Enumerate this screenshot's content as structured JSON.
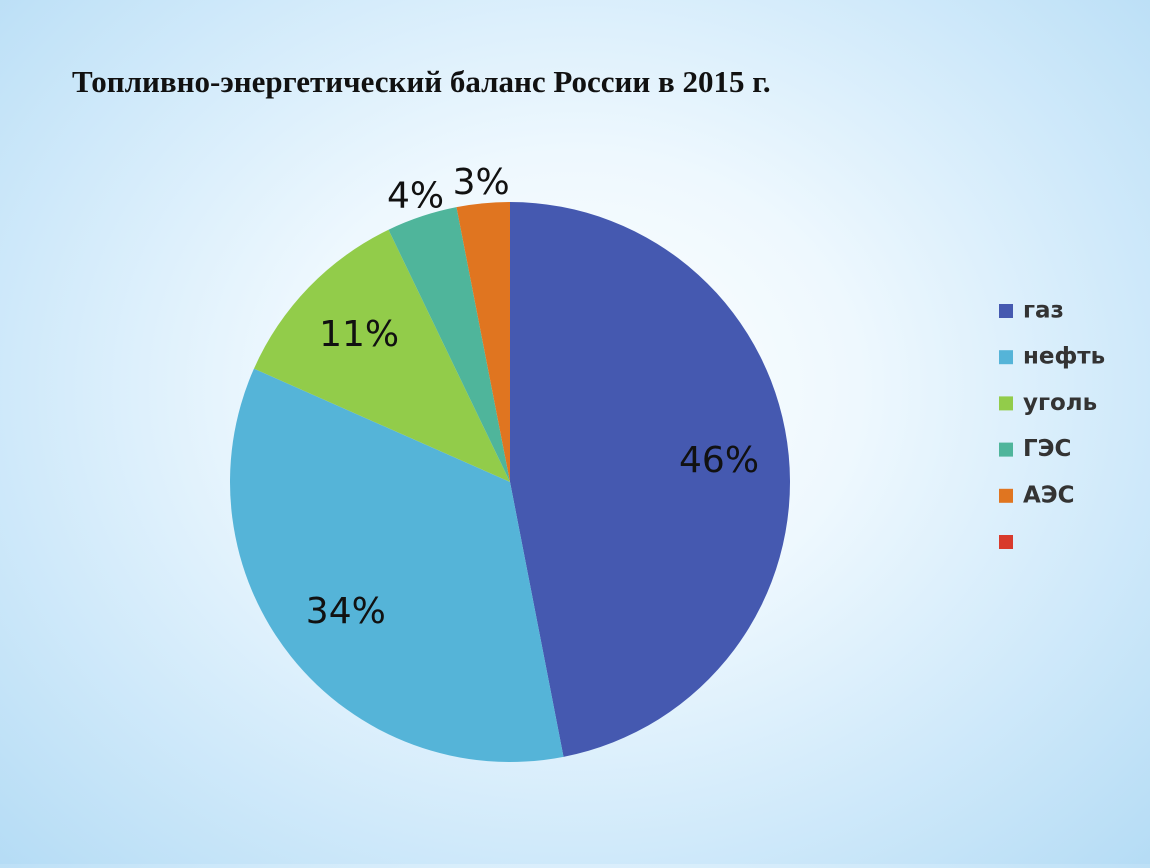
{
  "chart_data": {
    "type": "pie",
    "title": "Топливно-энергетический баланс России в 2015 г.",
    "categories": [
      "газ",
      "нефть",
      "уголь",
      "ГЭС",
      "АЭС",
      null
    ],
    "values": [
      46,
      34,
      11,
      4,
      3,
      null
    ],
    "value_labels": [
      "46%",
      "34%",
      "11%",
      "4%",
      "3%",
      null
    ],
    "colors": [
      "#4559b0",
      "#55b4d8",
      "#92cc4a",
      "#4fb59b",
      "#e07520",
      "#d83a2c"
    ],
    "legend": "right"
  }
}
